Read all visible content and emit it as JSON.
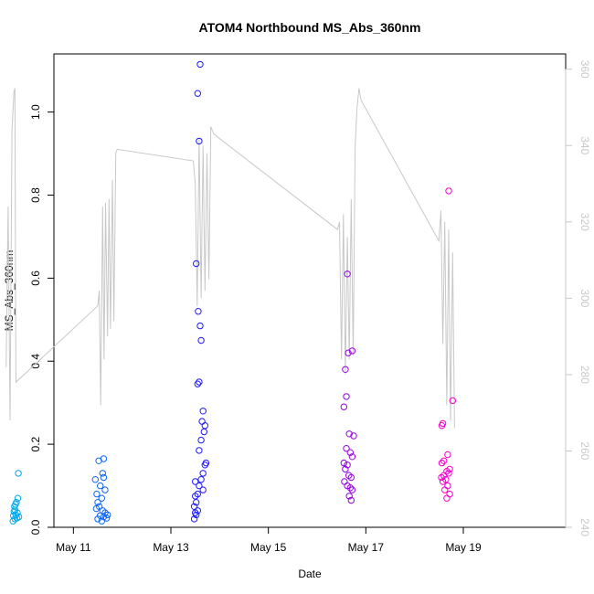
{
  "chart_data": {
    "type": "scatter",
    "title": "ATOM4 Northbound MS_Abs_360nm",
    "xlabel": "Date",
    "ylabel": "MS_Abs_360nm",
    "x_unit": "days since May 10, 00:00",
    "xlim": [
      0.6,
      11.1
    ],
    "ylim": [
      0,
      1.14
    ],
    "y2lim": [
      240,
      364
    ],
    "x_ticks": [
      {
        "value": 1,
        "label": "May 11"
      },
      {
        "value": 3,
        "label": "May 13"
      },
      {
        "value": 5,
        "label": "May 15"
      },
      {
        "value": 7,
        "label": "May 17"
      },
      {
        "value": 9,
        "label": "May 19"
      }
    ],
    "y_ticks": [
      {
        "value": 0.0,
        "label": "0.0"
      },
      {
        "value": 0.2,
        "label": "0.2"
      },
      {
        "value": 0.4,
        "label": "0.4"
      },
      {
        "value": 0.6,
        "label": "0.6"
      },
      {
        "value": 0.8,
        "label": "0.8"
      },
      {
        "value": 1.0,
        "label": "1.0"
      }
    ],
    "y2_ticks": [
      {
        "value": 240,
        "label": "240"
      },
      {
        "value": 260,
        "label": "260"
      },
      {
        "value": 280,
        "label": "280"
      },
      {
        "value": 300,
        "label": "300"
      },
      {
        "value": 320,
        "label": "320"
      },
      {
        "value": 340,
        "label": "340"
      },
      {
        "value": 360,
        "label": "360"
      }
    ],
    "colors": {
      "axis": "#000000",
      "secondary_line": "#c8c8c8",
      "secondary_axis": "#c8c8c8",
      "points_start": "#00aaee",
      "points_mid": "#2200ff",
      "points_end": "#ff00cc"
    },
    "scatter_points": [
      [
        -0.13,
        0.13
      ],
      [
        -0.14,
        0.07
      ],
      [
        -0.17,
        0.06
      ],
      [
        -0.19,
        0.055
      ],
      [
        -0.21,
        0.05
      ],
      [
        -0.2,
        0.042
      ],
      [
        -0.22,
        0.038
      ],
      [
        -0.15,
        0.035
      ],
      [
        -0.18,
        0.03
      ],
      [
        -0.23,
        0.028
      ],
      [
        -0.12,
        0.025
      ],
      [
        -0.16,
        0.022
      ],
      [
        -0.2,
        0.02
      ],
      [
        -0.24,
        0.015
      ],
      [
        1.62,
        0.165
      ],
      [
        1.52,
        0.16
      ],
      [
        1.45,
        0.115
      ],
      [
        1.6,
        0.13
      ],
      [
        1.62,
        0.12
      ],
      [
        1.55,
        0.1
      ],
      [
        1.65,
        0.09
      ],
      [
        1.48,
        0.08
      ],
      [
        1.58,
        0.07
      ],
      [
        1.5,
        0.06
      ],
      [
        1.53,
        0.05
      ],
      [
        1.47,
        0.045
      ],
      [
        1.6,
        0.04
      ],
      [
        1.65,
        0.035
      ],
      [
        1.7,
        0.03
      ],
      [
        1.55,
        0.028
      ],
      [
        1.62,
        0.025
      ],
      [
        1.68,
        0.022
      ],
      [
        1.5,
        0.02
      ],
      [
        1.58,
        0.015
      ],
      [
        3.6,
        1.115
      ],
      [
        3.55,
        1.045
      ],
      [
        3.58,
        0.93
      ],
      [
        3.52,
        0.635
      ],
      [
        3.56,
        0.52
      ],
      [
        3.6,
        0.485
      ],
      [
        3.62,
        0.45
      ],
      [
        3.58,
        0.35
      ],
      [
        3.55,
        0.345
      ],
      [
        3.66,
        0.28
      ],
      [
        3.64,
        0.255
      ],
      [
        3.7,
        0.245
      ],
      [
        3.68,
        0.23
      ],
      [
        3.62,
        0.21
      ],
      [
        3.58,
        0.185
      ],
      [
        3.72,
        0.155
      ],
      [
        3.7,
        0.15
      ],
      [
        3.66,
        0.13
      ],
      [
        3.62,
        0.115
      ],
      [
        3.5,
        0.11
      ],
      [
        3.58,
        0.1
      ],
      [
        3.66,
        0.09
      ],
      [
        3.55,
        0.08
      ],
      [
        3.5,
        0.075
      ],
      [
        3.52,
        0.06
      ],
      [
        3.48,
        0.05
      ],
      [
        3.55,
        0.04
      ],
      [
        3.5,
        0.035
      ],
      [
        3.52,
        0.03
      ],
      [
        3.48,
        0.02
      ],
      [
        6.62,
        0.61
      ],
      [
        6.72,
        0.425
      ],
      [
        6.64,
        0.42
      ],
      [
        6.58,
        0.38
      ],
      [
        6.6,
        0.315
      ],
      [
        6.55,
        0.29
      ],
      [
        6.66,
        0.225
      ],
      [
        6.75,
        0.22
      ],
      [
        6.6,
        0.19
      ],
      [
        6.68,
        0.18
      ],
      [
        6.72,
        0.17
      ],
      [
        6.55,
        0.155
      ],
      [
        6.62,
        0.15
      ],
      [
        6.58,
        0.14
      ],
      [
        6.65,
        0.125
      ],
      [
        6.7,
        0.12
      ],
      [
        6.56,
        0.11
      ],
      [
        6.62,
        0.1
      ],
      [
        6.68,
        0.095
      ],
      [
        6.72,
        0.09
      ],
      [
        6.66,
        0.075
      ],
      [
        6.7,
        0.065
      ],
      [
        8.7,
        0.81
      ],
      [
        8.78,
        0.305
      ],
      [
        8.58,
        0.25
      ],
      [
        8.56,
        0.245
      ],
      [
        8.68,
        0.175
      ],
      [
        8.6,
        0.16
      ],
      [
        8.56,
        0.155
      ],
      [
        8.72,
        0.14
      ],
      [
        8.66,
        0.135
      ],
      [
        8.7,
        0.13
      ],
      [
        8.6,
        0.125
      ],
      [
        8.55,
        0.12
      ],
      [
        8.64,
        0.115
      ],
      [
        8.58,
        0.11
      ],
      [
        8.68,
        0.1
      ],
      [
        8.62,
        0.09
      ],
      [
        8.72,
        0.08
      ],
      [
        8.66,
        0.07
      ]
    ],
    "secondary_line_y2": [
      [
        -0.38,
        282
      ],
      [
        -0.34,
        324
      ],
      [
        -0.3,
        268
      ],
      [
        -0.26,
        344
      ],
      [
        -0.22,
        354
      ],
      [
        -0.2,
        355
      ],
      [
        -0.18,
        278
      ],
      [
        1.5,
        298
      ],
      [
        1.53,
        302
      ],
      [
        1.56,
        272
      ],
      [
        1.6,
        324
      ],
      [
        1.63,
        284
      ],
      [
        1.66,
        325
      ],
      [
        1.7,
        290
      ],
      [
        1.73,
        326
      ],
      [
        1.76,
        292
      ],
      [
        1.8,
        331
      ],
      [
        1.83,
        294
      ],
      [
        1.87,
        338
      ],
      [
        1.9,
        339
      ],
      [
        3.46,
        336
      ],
      [
        3.5,
        330
      ],
      [
        3.54,
        298
      ],
      [
        3.58,
        342
      ],
      [
        3.62,
        300
      ],
      [
        3.66,
        340
      ],
      [
        3.7,
        302
      ],
      [
        3.74,
        338
      ],
      [
        3.78,
        305
      ],
      [
        3.82,
        345
      ],
      [
        3.85,
        344
      ],
      [
        3.88,
        343
      ],
      [
        6.42,
        318
      ],
      [
        6.46,
        320
      ],
      [
        6.5,
        284
      ],
      [
        6.54,
        322
      ],
      [
        6.58,
        280
      ],
      [
        6.62,
        316
      ],
      [
        6.66,
        284
      ],
      [
        6.7,
        326
      ],
      [
        6.74,
        285
      ],
      [
        6.78,
        340
      ],
      [
        6.82,
        350
      ],
      [
        6.86,
        355
      ],
      [
        6.9,
        352
      ],
      [
        6.94,
        351
      ],
      [
        8.5,
        315
      ],
      [
        8.54,
        323
      ],
      [
        8.58,
        288
      ],
      [
        8.62,
        320
      ],
      [
        8.66,
        272
      ],
      [
        8.7,
        318
      ],
      [
        8.74,
        268
      ],
      [
        8.78,
        312
      ],
      [
        8.82,
        266
      ]
    ]
  }
}
